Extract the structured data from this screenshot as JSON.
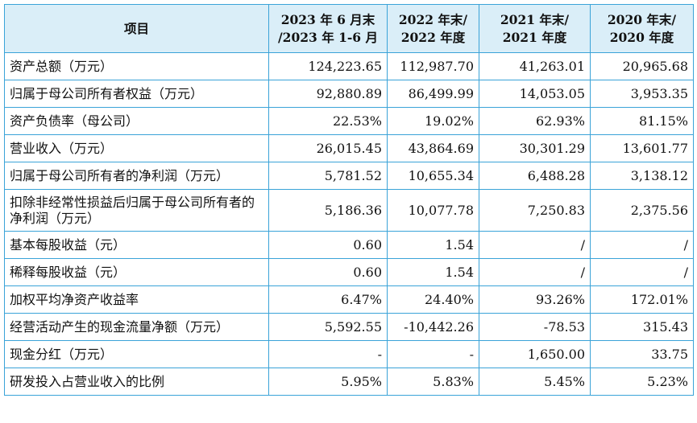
{
  "table": {
    "headers": [
      {
        "lines": [
          "项目"
        ]
      },
      {
        "lines": [
          "2023 年 6 月末",
          "/2023 年 1-6 月"
        ]
      },
      {
        "lines": [
          "2022 年末/",
          "2022 年度"
        ]
      },
      {
        "lines": [
          "2021 年末/",
          "2021 年度"
        ]
      },
      {
        "lines": [
          "2020 年末/",
          "2020 年度"
        ]
      }
    ],
    "rows": [
      {
        "label": "资产总额（万元）",
        "values": [
          "124,223.65",
          "112,987.70",
          "41,263.01",
          "20,965.68"
        ]
      },
      {
        "label": "归属于母公司所有者权益（万元）",
        "values": [
          "92,880.89",
          "86,499.99",
          "14,053.05",
          "3,953.35"
        ]
      },
      {
        "label": "资产负债率（母公司）",
        "values": [
          "22.53%",
          "19.02%",
          "62.93%",
          "81.15%"
        ]
      },
      {
        "label": "营业收入（万元）",
        "values": [
          "26,015.45",
          "43,864.69",
          "30,301.29",
          "13,601.77"
        ]
      },
      {
        "label": "归属于母公司所有者的净利润（万元）",
        "values": [
          "5,781.52",
          "10,655.34",
          "6,488.28",
          "3,138.12"
        ]
      },
      {
        "label": "扣除非经常性损益后归属于母公司所有者的净利润（万元）",
        "values": [
          "5,186.36",
          "10,077.78",
          "7,250.83",
          "2,375.56"
        ]
      },
      {
        "label": "基本每股收益（元）",
        "values": [
          "0.60",
          "1.54",
          "/",
          "/"
        ]
      },
      {
        "label": "稀释每股收益（元）",
        "values": [
          "0.60",
          "1.54",
          "/",
          "/"
        ]
      },
      {
        "label": "加权平均净资产收益率",
        "values": [
          "6.47%",
          "24.40%",
          "93.26%",
          "172.01%"
        ]
      },
      {
        "label": "经营活动产生的现金流量净额（万元）",
        "values": [
          "5,592.55",
          "-10,442.26",
          "-78.53",
          "315.43"
        ]
      },
      {
        "label": "现金分红（万元）",
        "values": [
          "-",
          "-",
          "1,650.00",
          "33.75"
        ]
      },
      {
        "label": "研发投入占营业收入的比例",
        "values": [
          "5.95%",
          "5.83%",
          "5.45%",
          "5.23%"
        ]
      }
    ]
  }
}
